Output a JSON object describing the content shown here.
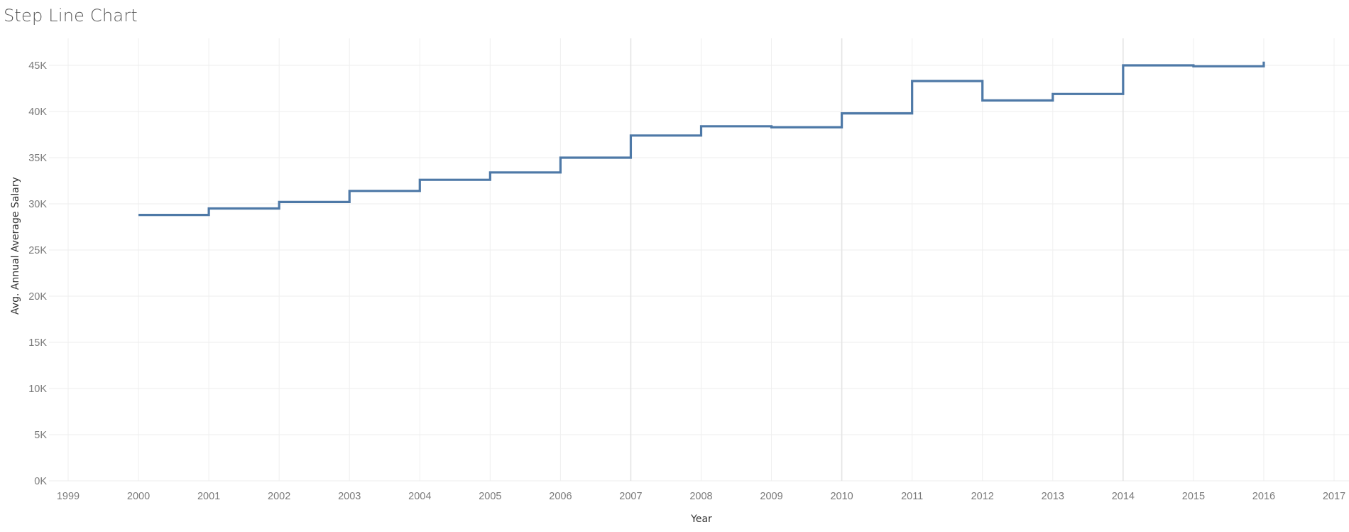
{
  "page": {
    "title": "Step Line Chart"
  },
  "chart_data": {
    "type": "line",
    "interpolation": "step-after",
    "title": "Step Line Chart",
    "xlabel": "Year",
    "ylabel": "Avg. Annual Average Salary",
    "x_ticks": [
      "1999",
      "2000",
      "2001",
      "2002",
      "2003",
      "2004",
      "2005",
      "2006",
      "2007",
      "2008",
      "2009",
      "2010",
      "2011",
      "2012",
      "2013",
      "2014",
      "2015",
      "2016",
      "2017"
    ],
    "y_ticks": [
      "0K",
      "5K",
      "10K",
      "15K",
      "20K",
      "25K",
      "30K",
      "35K",
      "40K",
      "45K"
    ],
    "xlim": [
      1999,
      2017
    ],
    "ylim": [
      0,
      48000
    ],
    "grid": true,
    "color": "#4e79a7",
    "series": [
      {
        "x": [
          2000,
          2001,
          2002,
          2003,
          2004,
          2005,
          2006,
          2007,
          2008,
          2009,
          2010,
          2011,
          2012,
          2013,
          2014,
          2015,
          2016
        ],
        "values": [
          28800,
          29500,
          30200,
          31400,
          32600,
          33400,
          35000,
          37400,
          38400,
          38300,
          39800,
          43300,
          41200,
          41900,
          45000,
          44900,
          45400
        ]
      }
    ]
  }
}
